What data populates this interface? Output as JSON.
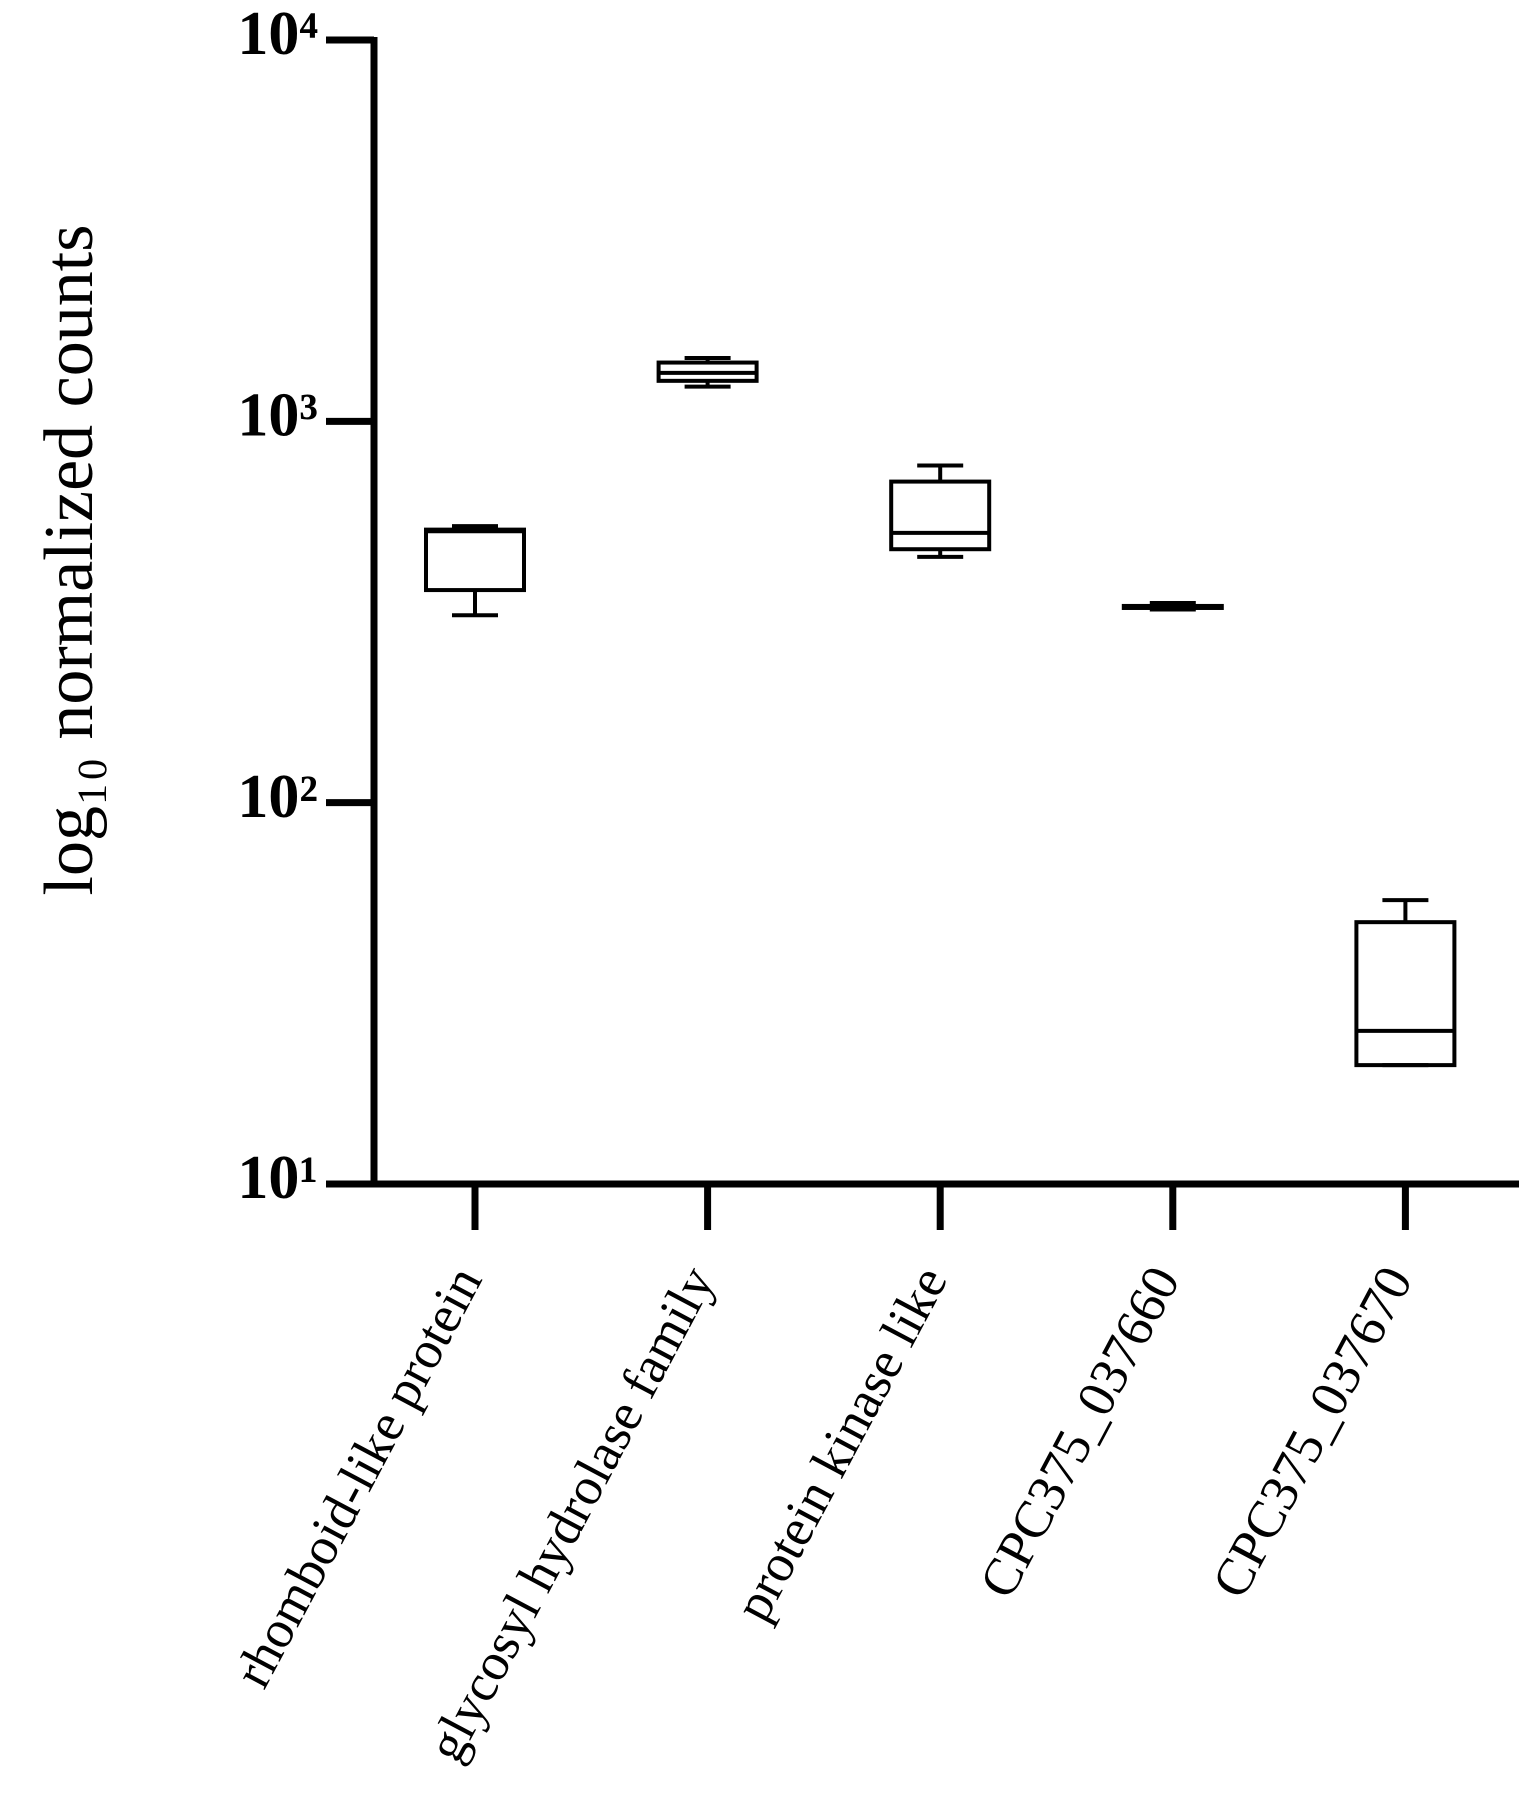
{
  "chart_data": {
    "type": "box",
    "y_label": "log₁₀ normalized counts",
    "y_scale": "log",
    "categories": [
      "rhomboid-like protein",
      "glycosyl hydrolase family",
      "protein kinase  like",
      "CPC375_037660",
      "CPC375_037670"
    ],
    "boxes": [
      {
        "whislo": 310,
        "q1": 361,
        "med": 515,
        "q3": 520,
        "whishi": 531
      },
      {
        "whislo": 1233,
        "q1": 1277,
        "med": 1340,
        "q3": 1426,
        "whishi": 1466
      },
      {
        "whislo": 441,
        "q1": 462,
        "med": 510,
        "q3": 695,
        "whishi": 766
      },
      {
        "whislo": 321,
        "q1": 324,
        "med": 326,
        "q3": 328,
        "whishi": 334
      },
      {
        "whislo": 20.5,
        "q1": 20.5,
        "med": 25.2,
        "q3": 48.6,
        "whishi": 55.5
      }
    ],
    "color": "#000000",
    "ylim": [
      10,
      10000
    ],
    "yticks": [
      {
        "value": 10,
        "label": "10¹"
      },
      {
        "value": 100,
        "label": "10²"
      },
      {
        "value": 1000,
        "label": "10³"
      },
      {
        "value": 10000,
        "label": "10⁴"
      }
    ]
  }
}
